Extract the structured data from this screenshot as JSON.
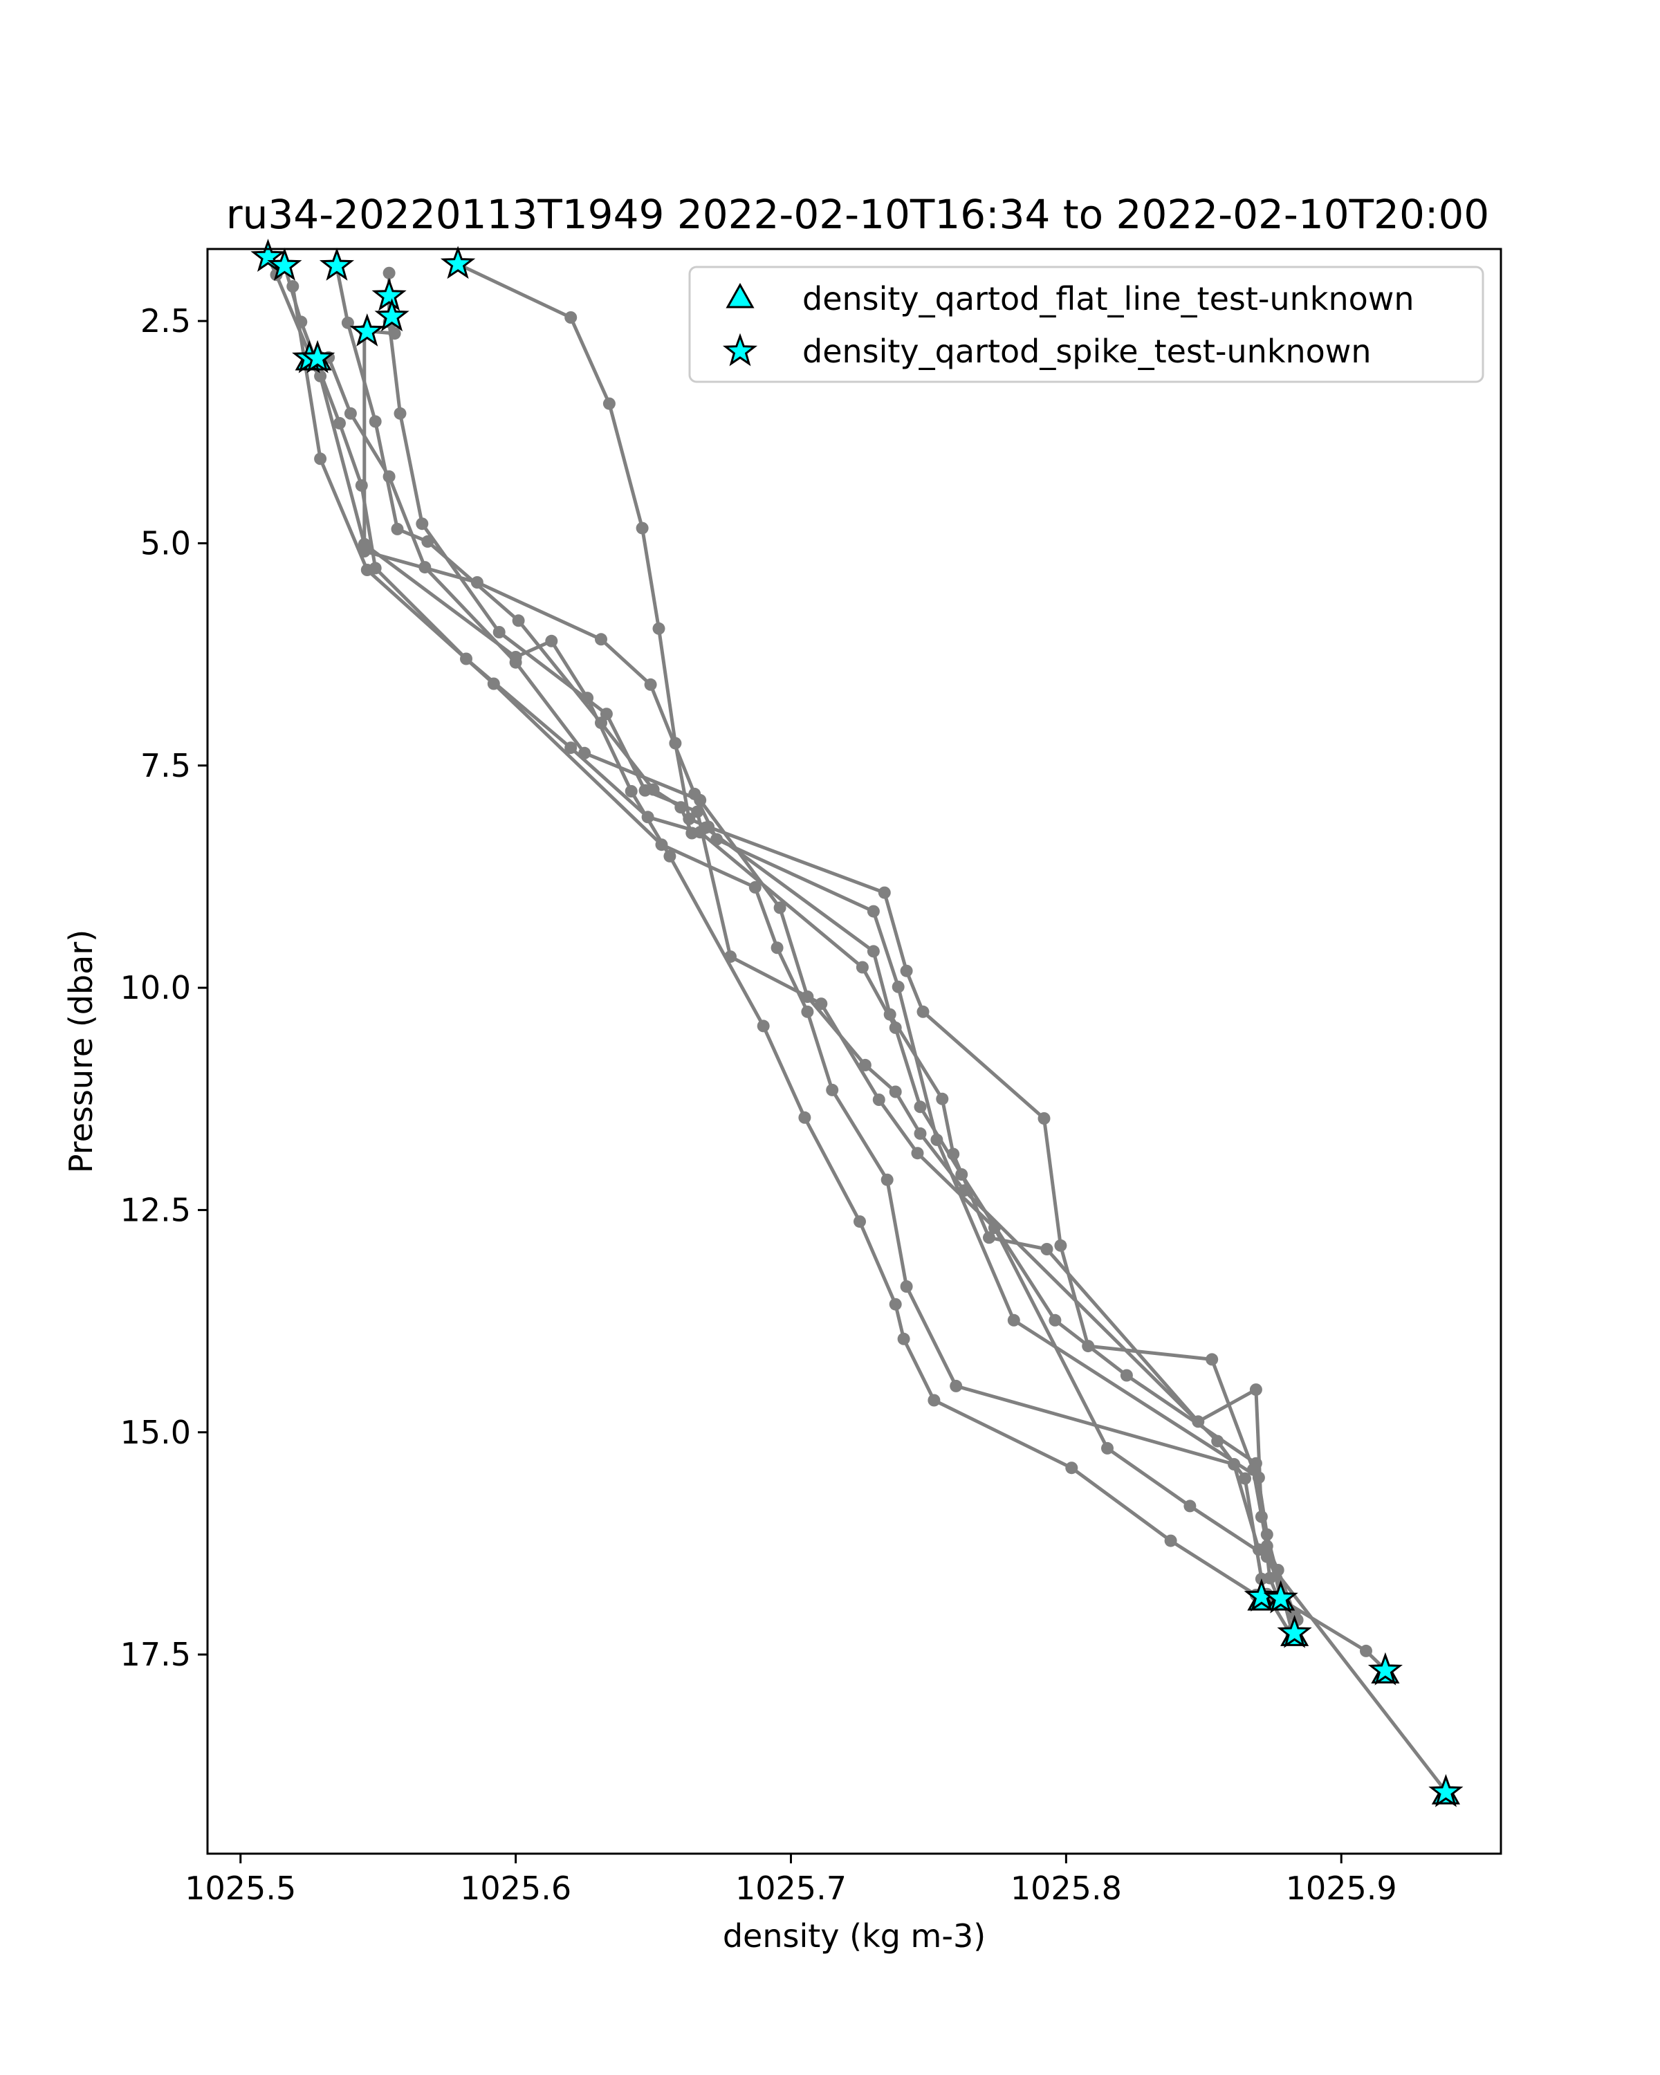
{
  "chart_data": {
    "type": "line",
    "title": "ru34-20220113T1949 2022-02-10T16:34 to 2022-02-10T20:00",
    "xlabel": "density (kg m-3)",
    "ylabel": "Pressure (dbar)",
    "xlim": [
      1025.488,
      1025.958
    ],
    "ylim": [
      19.74,
      1.69
    ],
    "y_inverted": true,
    "grid": false,
    "xticks": [
      1025.5,
      1025.6,
      1025.7,
      1025.8,
      1025.9
    ],
    "xtick_labels": [
      "1025.5",
      "1025.6",
      "1025.7",
      "1025.8",
      "1025.9"
    ],
    "yticks": [
      2.5,
      5.0,
      7.5,
      10.0,
      12.5,
      15.0,
      17.5
    ],
    "ytick_labels": [
      "2.5",
      "5.0",
      "7.5",
      "10.0",
      "12.5",
      "15.0",
      "17.5"
    ],
    "line_color": "#808080",
    "marker_color": "#00ffff",
    "legend": {
      "position": "upper right",
      "entries": [
        {
          "label": "density_qartod_flat_line_test-unknown",
          "marker": "triangle"
        },
        {
          "label": "density_qartod_spike_test-unknown",
          "marker": "star"
        }
      ]
    },
    "series": [
      {
        "x": [
          1025.579,
          1025.62,
          1025.634,
          1025.646,
          1025.652,
          1025.658,
          1025.663,
          1025.67,
          1025.734,
          1025.742,
          1025.748,
          1025.792,
          1025.798,
          1025.808,
          1025.853,
          1025.868,
          1025.873,
          1025.877,
          1025.883
        ],
        "y": [
          1.86,
          2.46,
          3.43,
          4.83,
          5.96,
          7.25,
          8.1,
          8.19,
          8.93,
          9.81,
          10.27,
          11.47,
          12.9,
          14.03,
          14.18,
          15.42,
          16.28,
          16.55,
          17.05
        ]
      },
      {
        "x": [
          1025.535,
          1025.539,
          1025.549,
          1025.557,
          1025.568,
          1025.601,
          1025.631,
          1025.65,
          1025.66,
          1025.664,
          1025.669,
          1025.73,
          1025.736,
          1025.755,
          1025.759,
          1025.772,
          1025.793,
          1025.848,
          1025.869,
          1025.871,
          1025.878
        ],
        "y": [
          1.9,
          2.52,
          3.63,
          4.84,
          4.98,
          5.87,
          7.02,
          7.77,
          7.97,
          8.26,
          8.2,
          9.59,
          10.3,
          11.25,
          11.87,
          12.81,
          12.94,
          14.88,
          14.52,
          15.95,
          16.87
        ]
      },
      {
        "x": [
          1025.516,
          1025.522,
          1025.536,
          1025.544,
          1025.549,
          1025.582,
          1025.62,
          1025.648,
          1025.667,
          1025.726,
          1025.738,
          1025.747,
          1025.762,
          1025.796,
          1025.822,
          1025.869,
          1025.873,
          1025.882
        ],
        "y": [
          1.88,
          2.51,
          3.65,
          4.35,
          5.28,
          6.3,
          7.3,
          8.08,
          8.25,
          9.77,
          10.45,
          11.34,
          12.1,
          13.74,
          14.36,
          15.35,
          16.15,
          17.23
        ]
      },
      {
        "x": [
          1025.51,
          1025.513,
          1025.526,
          1025.529,
          1025.532,
          1025.54,
          1025.554,
          1025.567,
          1025.6,
          1025.625,
          1025.667,
          1025.696,
          1025.706,
          1025.727,
          1025.738,
          1025.747,
          1025.763,
          1025.855,
          1025.865,
          1025.871,
          1025.871
        ],
        "y": [
          1.78,
          1.98,
          2.94,
          2.91,
          2.91,
          3.54,
          4.25,
          5.27,
          6.34,
          7.36,
          7.89,
          9.1,
          10.1,
          10.87,
          11.17,
          11.64,
          12.28,
          15.1,
          15.52,
          16.65,
          16.87
        ]
      },
      {
        "x": [
          1025.555,
          1025.556,
          1025.545,
          1025.545,
          1025.586,
          1025.631,
          1025.649,
          1025.665,
          1025.673,
          1025.73,
          1025.739,
          1025.753,
          1025.781,
          1025.87,
          1025.874,
          1025.877,
          1025.909,
          1025.916
        ],
        "y": [
          2.51,
          2.64,
          2.61,
          5.09,
          5.44,
          6.08,
          6.59,
          7.82,
          8.33,
          9.14,
          9.99,
          11.71,
          13.74,
          15.51,
          16.64,
          16.86,
          17.46,
          17.67
        ]
      },
      {
        "x": [
          1025.554,
          1025.554,
          1025.558,
          1025.566,
          1025.594,
          1025.633,
          1025.647,
          1025.666,
          1025.678,
          1025.711,
          1025.732,
          1025.746,
          1025.774,
          1025.815,
          1025.845,
          1025.873,
          1025.884
        ],
        "y": [
          1.96,
          2.51,
          3.54,
          4.78,
          6.0,
          6.92,
          7.78,
          8.02,
          9.65,
          10.18,
          11.26,
          11.86,
          12.7,
          15.18,
          15.83,
          16.4,
          17.11
        ]
      },
      {
        "x": [
          1025.525,
          1025.525,
          1025.529,
          1025.545,
          1025.6,
          1025.613,
          1025.626,
          1025.642,
          1025.656,
          1025.69,
          1025.705,
          1025.725,
          1025.738,
          1025.741,
          1025.752,
          1025.802,
          1025.838,
          1025.869,
          1025.873,
          1025.874,
          1025.882
        ],
        "y": [
          2.92,
          2.97,
          3.12,
          5.01,
          6.28,
          6.1,
          6.74,
          7.79,
          8.52,
          10.43,
          11.46,
          12.63,
          13.56,
          13.95,
          14.64,
          15.4,
          16.22,
          16.83,
          16.82,
          16.88,
          17.29
        ]
      },
      {
        "x": [
          1025.519,
          1025.529,
          1025.546,
          1025.592,
          1025.653,
          1025.687,
          1025.695,
          1025.706,
          1025.715,
          1025.735,
          1025.742,
          1025.76,
          1025.861,
          1025.87,
          1025.938
        ],
        "y": [
          2.11,
          4.05,
          5.3,
          6.58,
          8.39,
          8.87,
          9.55,
          10.27,
          11.15,
          12.16,
          13.36,
          14.48,
          15.36,
          16.32,
          19.04
        ]
      }
    ],
    "spike_flags": {
      "x": [
        1025.51,
        1025.516,
        1025.535,
        1025.554,
        1025.579,
        1025.555,
        1025.546,
        1025.525,
        1025.528,
        1025.871,
        1025.878,
        1025.883,
        1025.916,
        1025.938
      ],
      "y": [
        1.78,
        1.88,
        1.88,
        2.22,
        1.86,
        2.45,
        2.62,
        2.92,
        2.92,
        16.85,
        16.87,
        17.26,
        17.68,
        19.05
      ]
    },
    "flat_line_flags": {
      "x": [
        1025.525,
        1025.528,
        1025.871,
        1025.878,
        1025.883,
        1025.916,
        1025.938
      ],
      "y": [
        2.95,
        2.95,
        16.9,
        16.9,
        17.3,
        17.72,
        19.08
      ]
    }
  }
}
